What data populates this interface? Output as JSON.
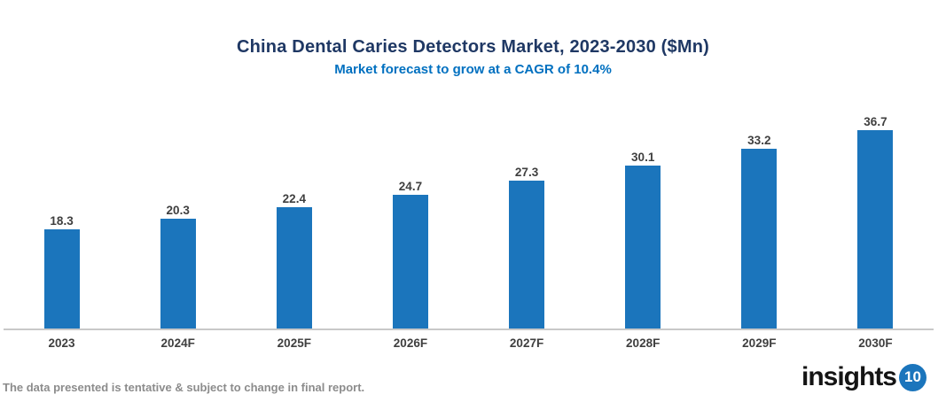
{
  "header": {
    "title": "China Dental Caries Detectors Market, 2023-2030 ($Mn)",
    "subtitle": "Market forecast to grow at a CAGR of 10.4%"
  },
  "chart_data": {
    "type": "bar",
    "categories": [
      "2023",
      "2024F",
      "2025F",
      "2026F",
      "2027F",
      "2028F",
      "2029F",
      "2030F"
    ],
    "values": [
      18.3,
      20.3,
      22.4,
      24.7,
      27.3,
      30.1,
      33.2,
      36.7
    ],
    "title": "China Dental Caries Detectors Market, 2023-2030 ($Mn)",
    "subtitle": "Market forecast to grow at a CAGR of 10.4%",
    "xlabel": "",
    "ylabel": "",
    "ylim": [
      0,
      40
    ],
    "grid": false,
    "legend": false,
    "data_labels": true,
    "bar_color": "#1B75BC"
  },
  "footer": {
    "note": "The data presented is tentative & subject to change in final report.",
    "logo_text": "insights",
    "logo_badge": "10"
  },
  "colors": {
    "title": "#1F3864",
    "subtitle": "#0070C0",
    "bar": "#1B75BC",
    "axis_line": "#C9C9C9",
    "data_label": "#3F3F3F",
    "footer_note": "#8C8C8C",
    "logo_badge_bg": "#1B75BC"
  }
}
